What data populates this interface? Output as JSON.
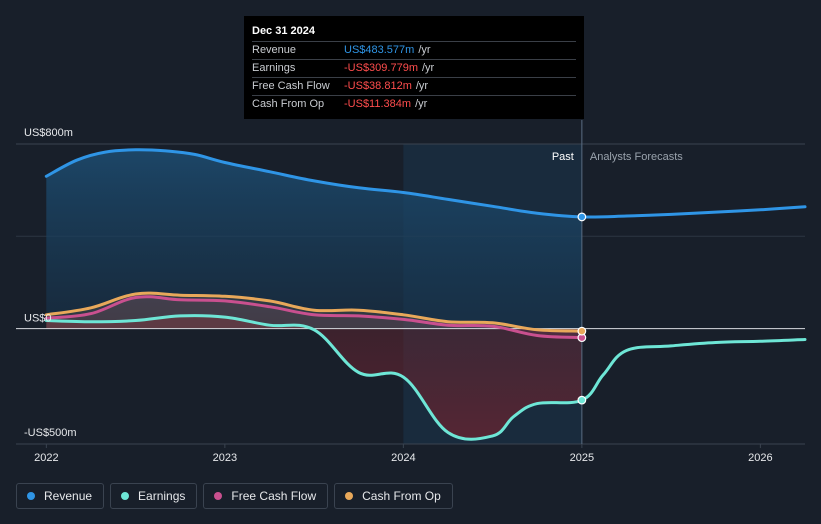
{
  "tooltip": {
    "date": "Dec 31 2024",
    "rows": [
      {
        "label": "Revenue",
        "value": "US$483.577m",
        "unit": "/yr",
        "color": "#2f95e6"
      },
      {
        "label": "Earnings",
        "value": "-US$309.779m",
        "unit": "/yr",
        "color": "#ff4d4d"
      },
      {
        "label": "Free Cash Flow",
        "value": "-US$38.812m",
        "unit": "/yr",
        "color": "#ff4d4d"
      },
      {
        "label": "Cash From Op",
        "value": "-US$11.384m",
        "unit": "/yr",
        "color": "#ff4d4d"
      }
    ]
  },
  "regions": {
    "past": "Past",
    "forecast": "Analysts Forecasts"
  },
  "legend": [
    {
      "label": "Revenue",
      "color": "#2f95e6"
    },
    {
      "label": "Earnings",
      "color": "#6ee6d6"
    },
    {
      "label": "Free Cash Flow",
      "color": "#c9508f"
    },
    {
      "label": "Cash From Op",
      "color": "#e8a85a"
    }
  ],
  "chart_data": {
    "type": "line",
    "ylim": [
      -500,
      800
    ],
    "yticks": [
      {
        "label": "US$800m",
        "value": 800
      },
      {
        "label": "US$0",
        "value": 0
      },
      {
        "label": "-US$500m",
        "value": -500
      }
    ],
    "xlim": [
      2021.83,
      2026.25
    ],
    "xticks": [
      "2022",
      "2023",
      "2024",
      "2025",
      "2026"
    ],
    "past_end": 2025.0,
    "highlight_start": 2024.0,
    "series": [
      {
        "name": "Revenue",
        "color": "#2f95e6",
        "x": [
          2022.0,
          2022.17,
          2022.33,
          2022.5,
          2022.67,
          2022.83,
          2023.0,
          2023.25,
          2023.5,
          2023.75,
          2024.0,
          2024.25,
          2024.5,
          2024.75,
          2025.0,
          2025.25,
          2025.5,
          2025.75,
          2026.0,
          2026.25
        ],
        "y": [
          660,
          730,
          765,
          775,
          770,
          755,
          720,
          680,
          640,
          610,
          590,
          560,
          530,
          500,
          484,
          488,
          495,
          505,
          515,
          528
        ]
      },
      {
        "name": "Earnings",
        "color": "#6ee6d6",
        "x": [
          2022.0,
          2022.25,
          2022.5,
          2022.75,
          2023.0,
          2023.25,
          2023.5,
          2023.75,
          2024.0,
          2024.25,
          2024.5,
          2024.62,
          2024.75,
          2025.0,
          2025.12,
          2025.25,
          2025.5,
          2025.75,
          2026.0,
          2026.25
        ],
        "y": [
          35,
          30,
          35,
          55,
          50,
          15,
          -5,
          -190,
          -210,
          -450,
          -465,
          -380,
          -325,
          -310,
          -200,
          -95,
          -75,
          -60,
          -55,
          -47
        ]
      },
      {
        "name": "Free Cash Flow",
        "color": "#c9508f",
        "x": [
          2022.0,
          2022.25,
          2022.5,
          2022.75,
          2023.0,
          2023.25,
          2023.5,
          2023.75,
          2024.0,
          2024.25,
          2024.5,
          2024.75,
          2025.0
        ],
        "y": [
          45,
          65,
          135,
          125,
          120,
          95,
          60,
          55,
          40,
          15,
          10,
          -30,
          -39
        ]
      },
      {
        "name": "Cash From Op",
        "color": "#e8a85a",
        "x": [
          2022.0,
          2022.25,
          2022.5,
          2022.75,
          2023.0,
          2023.25,
          2023.5,
          2023.75,
          2024.0,
          2024.25,
          2024.5,
          2024.75,
          2025.0
        ],
        "y": [
          60,
          90,
          150,
          145,
          140,
          120,
          80,
          80,
          60,
          30,
          25,
          -5,
          -11
        ]
      }
    ]
  }
}
